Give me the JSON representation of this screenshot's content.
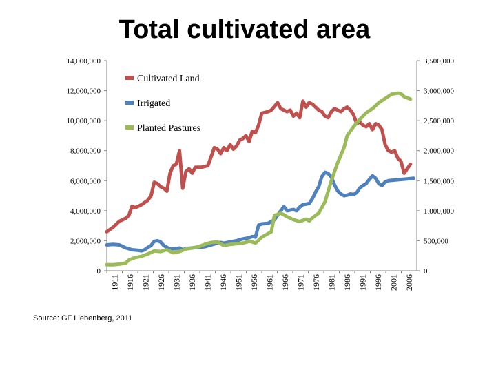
{
  "slide": {
    "title": "Total cultivated area",
    "source": "Source: GF Liebenberg, 2011"
  },
  "chart_data": {
    "type": "line",
    "title": "Total cultivated area",
    "left_axis": {
      "ylim": [
        0,
        14000000
      ],
      "ticks": [
        "0",
        "2,000,000",
        "4,000,000",
        "6,000,000",
        "8,000,000",
        "10,000,000",
        "12,000,000",
        "14,000,000"
      ]
    },
    "right_axis": {
      "ylim": [
        0,
        3500000
      ],
      "ticks": [
        "0",
        "500,000",
        "1,000,000",
        "1,500,000",
        "2,000,000",
        "2,500,000",
        "3,000,000",
        "3,500,000"
      ]
    },
    "x_ticks": [
      "1911",
      "1916",
      "1921",
      "1926",
      "1931",
      "1936",
      "1941",
      "1946",
      "1951",
      "1956",
      "1961",
      "1966",
      "1971",
      "1976",
      "1981",
      "1986",
      "1991",
      "1996",
      "2001",
      "2006"
    ],
    "xlim": [
      1911,
      2009
    ],
    "legend": {
      "position": "top-left"
    },
    "series": [
      {
        "name": "Cultivated Land",
        "axis": "left",
        "color": "#c0504d",
        "points": [
          [
            1911,
            2600000
          ],
          [
            1913,
            2900000
          ],
          [
            1915,
            3300000
          ],
          [
            1917,
            3500000
          ],
          [
            1918,
            3700000
          ],
          [
            1919,
            4300000
          ],
          [
            1920,
            4200000
          ],
          [
            1922,
            4400000
          ],
          [
            1924,
            4700000
          ],
          [
            1925,
            5000000
          ],
          [
            1926,
            5900000
          ],
          [
            1927,
            5800000
          ],
          [
            1928,
            5600000
          ],
          [
            1929,
            5500000
          ],
          [
            1930,
            5300000
          ],
          [
            1931,
            6500000
          ],
          [
            1932,
            7000000
          ],
          [
            1933,
            7100000
          ],
          [
            1934,
            8000000
          ],
          [
            1935,
            5500000
          ],
          [
            1936,
            6600000
          ],
          [
            1937,
            6800000
          ],
          [
            1938,
            6500000
          ],
          [
            1939,
            6900000
          ],
          [
            1941,
            6900000
          ],
          [
            1943,
            7000000
          ],
          [
            1944,
            7600000
          ],
          [
            1945,
            8200000
          ],
          [
            1946,
            8100000
          ],
          [
            1947,
            7800000
          ],
          [
            1948,
            8200000
          ],
          [
            1949,
            8000000
          ],
          [
            1950,
            8400000
          ],
          [
            1951,
            8100000
          ],
          [
            1952,
            8300000
          ],
          [
            1953,
            8700000
          ],
          [
            1954,
            8800000
          ],
          [
            1955,
            9000000
          ],
          [
            1956,
            8600000
          ],
          [
            1957,
            9300000
          ],
          [
            1958,
            9200000
          ],
          [
            1959,
            9700000
          ],
          [
            1960,
            10500000
          ],
          [
            1962,
            10600000
          ],
          [
            1963,
            10700000
          ],
          [
            1965,
            11200000
          ],
          [
            1966,
            10800000
          ],
          [
            1968,
            10600000
          ],
          [
            1969,
            10700000
          ],
          [
            1970,
            10300000
          ],
          [
            1971,
            10500000
          ],
          [
            1972,
            10200000
          ],
          [
            1973,
            11300000
          ],
          [
            1974,
            10900000
          ],
          [
            1975,
            11200000
          ],
          [
            1976,
            11100000
          ],
          [
            1978,
            10700000
          ],
          [
            1979,
            10600000
          ],
          [
            1980,
            10300000
          ],
          [
            1981,
            10200000
          ],
          [
            1982,
            10600000
          ],
          [
            1983,
            10800000
          ],
          [
            1984,
            10700000
          ],
          [
            1985,
            10600000
          ],
          [
            1986,
            10800000
          ],
          [
            1987,
            10900000
          ],
          [
            1988,
            10700000
          ],
          [
            1989,
            10400000
          ],
          [
            1990,
            9800000
          ],
          [
            1991,
            9900000
          ],
          [
            1992,
            9700000
          ],
          [
            1993,
            9600000
          ],
          [
            1994,
            9800000
          ],
          [
            1995,
            9400000
          ],
          [
            1996,
            9800000
          ],
          [
            1997,
            9700000
          ],
          [
            1998,
            9400000
          ],
          [
            1999,
            8400000
          ],
          [
            2000,
            8000000
          ],
          [
            2001,
            7900000
          ],
          [
            2002,
            8000000
          ],
          [
            2003,
            7500000
          ],
          [
            2004,
            7300000
          ],
          [
            2005,
            6500000
          ],
          [
            2006,
            6800000
          ],
          [
            2007,
            7100000
          ]
        ]
      },
      {
        "name": "Irrigated",
        "axis": "right",
        "color": "#4f81bd",
        "points": [
          [
            1911,
            430000
          ],
          [
            1913,
            440000
          ],
          [
            1915,
            430000
          ],
          [
            1917,
            380000
          ],
          [
            1919,
            350000
          ],
          [
            1921,
            340000
          ],
          [
            1922,
            330000
          ],
          [
            1923,
            350000
          ],
          [
            1924,
            390000
          ],
          [
            1925,
            420000
          ],
          [
            1926,
            490000
          ],
          [
            1927,
            500000
          ],
          [
            1928,
            480000
          ],
          [
            1929,
            420000
          ],
          [
            1931,
            360000
          ],
          [
            1933,
            370000
          ],
          [
            1934,
            380000
          ],
          [
            1935,
            350000
          ],
          [
            1936,
            370000
          ],
          [
            1938,
            380000
          ],
          [
            1940,
            390000
          ],
          [
            1942,
            400000
          ],
          [
            1944,
            430000
          ],
          [
            1946,
            460000
          ],
          [
            1947,
            470000
          ],
          [
            1948,
            460000
          ],
          [
            1950,
            480000
          ],
          [
            1952,
            500000
          ],
          [
            1954,
            530000
          ],
          [
            1956,
            550000
          ],
          [
            1957,
            570000
          ],
          [
            1958,
            560000
          ],
          [
            1959,
            760000
          ],
          [
            1960,
            780000
          ],
          [
            1962,
            790000
          ],
          [
            1964,
            850000
          ],
          [
            1966,
            1000000
          ],
          [
            1967,
            1070000
          ],
          [
            1968,
            1000000
          ],
          [
            1970,
            1020000
          ],
          [
            1971,
            1000000
          ],
          [
            1972,
            1060000
          ],
          [
            1973,
            1100000
          ],
          [
            1975,
            1120000
          ],
          [
            1976,
            1200000
          ],
          [
            1977,
            1310000
          ],
          [
            1978,
            1400000
          ],
          [
            1979,
            1570000
          ],
          [
            1980,
            1640000
          ],
          [
            1981,
            1620000
          ],
          [
            1982,
            1560000
          ],
          [
            1983,
            1430000
          ],
          [
            1984,
            1330000
          ],
          [
            1985,
            1280000
          ],
          [
            1986,
            1250000
          ],
          [
            1987,
            1260000
          ],
          [
            1988,
            1280000
          ],
          [
            1989,
            1270000
          ],
          [
            1990,
            1300000
          ],
          [
            1991,
            1380000
          ],
          [
            1992,
            1420000
          ],
          [
            1993,
            1450000
          ],
          [
            1994,
            1520000
          ],
          [
            1995,
            1580000
          ],
          [
            1996,
            1540000
          ],
          [
            1997,
            1450000
          ],
          [
            1998,
            1420000
          ],
          [
            1999,
            1480000
          ],
          [
            2000,
            1500000
          ],
          [
            2002,
            1510000
          ],
          [
            2004,
            1520000
          ],
          [
            2006,
            1530000
          ],
          [
            2008,
            1540000
          ]
        ]
      },
      {
        "name": "Planted Pastures",
        "axis": "right",
        "color": "#9bbb59",
        "points": [
          [
            1911,
            100000
          ],
          [
            1913,
            100000
          ],
          [
            1915,
            110000
          ],
          [
            1917,
            130000
          ],
          [
            1918,
            180000
          ],
          [
            1920,
            220000
          ],
          [
            1922,
            240000
          ],
          [
            1924,
            280000
          ],
          [
            1926,
            330000
          ],
          [
            1928,
            320000
          ],
          [
            1930,
            350000
          ],
          [
            1932,
            300000
          ],
          [
            1934,
            320000
          ],
          [
            1936,
            360000
          ],
          [
            1938,
            380000
          ],
          [
            1940,
            400000
          ],
          [
            1942,
            440000
          ],
          [
            1944,
            470000
          ],
          [
            1946,
            480000
          ],
          [
            1948,
            420000
          ],
          [
            1950,
            440000
          ],
          [
            1952,
            450000
          ],
          [
            1954,
            460000
          ],
          [
            1956,
            490000
          ],
          [
            1957,
            480000
          ],
          [
            1958,
            460000
          ],
          [
            1960,
            560000
          ],
          [
            1962,
            620000
          ],
          [
            1963,
            650000
          ],
          [
            1964,
            920000
          ],
          [
            1966,
            960000
          ],
          [
            1968,
            900000
          ],
          [
            1970,
            850000
          ],
          [
            1972,
            820000
          ],
          [
            1974,
            860000
          ],
          [
            1975,
            830000
          ],
          [
            1976,
            880000
          ],
          [
            1978,
            960000
          ],
          [
            1980,
            1150000
          ],
          [
            1982,
            1500000
          ],
          [
            1984,
            1800000
          ],
          [
            1986,
            2050000
          ],
          [
            1987,
            2250000
          ],
          [
            1989,
            2400000
          ],
          [
            1991,
            2520000
          ],
          [
            1993,
            2630000
          ],
          [
            1995,
            2700000
          ],
          [
            1997,
            2800000
          ],
          [
            1999,
            2870000
          ],
          [
            2001,
            2940000
          ],
          [
            2003,
            2960000
          ],
          [
            2004,
            2950000
          ],
          [
            2005,
            2900000
          ],
          [
            2006,
            2880000
          ],
          [
            2007,
            2860000
          ]
        ]
      }
    ]
  }
}
